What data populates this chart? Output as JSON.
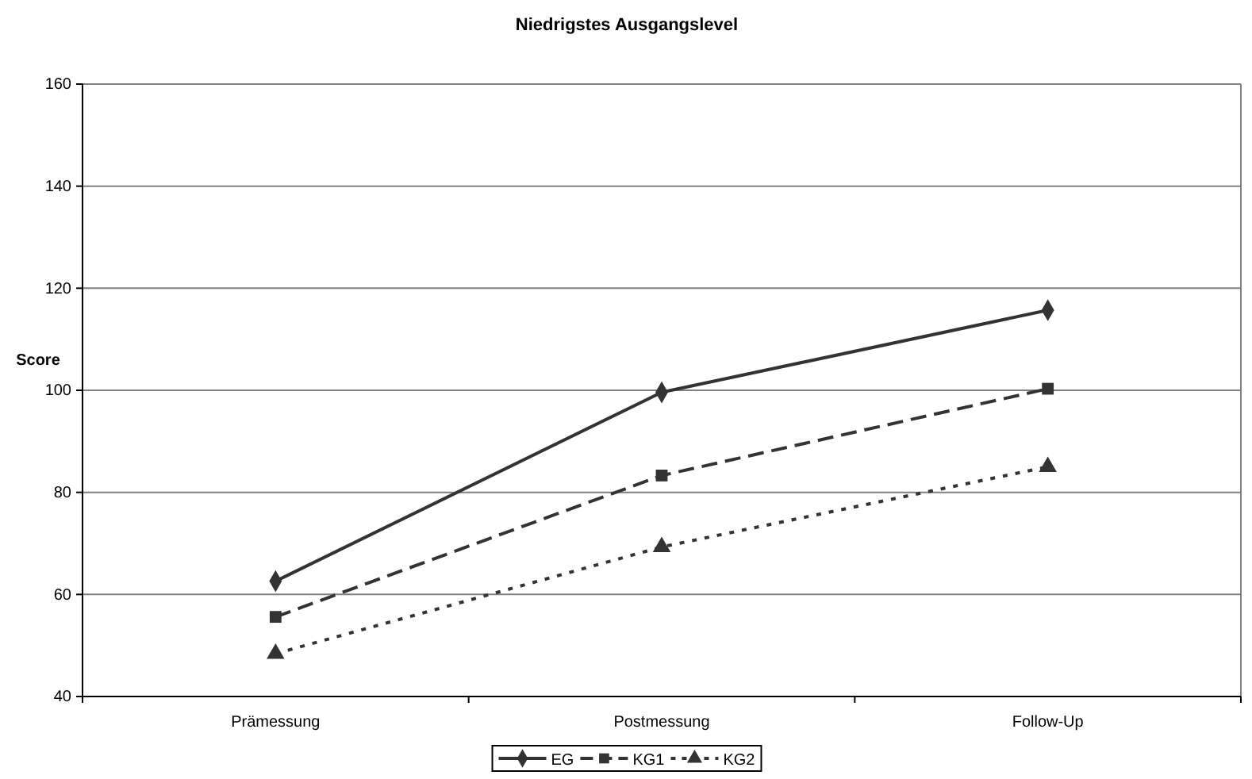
{
  "chart_data": {
    "type": "line",
    "title": "Niedrigstes Ausgangslevel",
    "ylabel": "Score",
    "categories": [
      "Prämessung",
      "Postmessung",
      "Follow-Up"
    ],
    "ylim": [
      40,
      160
    ],
    "yticks": [
      40,
      60,
      80,
      100,
      120,
      140,
      160
    ],
    "grid": "y",
    "legend": "bottom",
    "series": [
      {
        "name": "EG",
        "color": "#333333",
        "values": [
          62.6,
          99.6,
          115.7
        ],
        "marker": "diamond",
        "line_style": "solid"
      },
      {
        "name": "KG1",
        "color": "#333333",
        "values": [
          55.6,
          83.3,
          100.3
        ],
        "marker": "square",
        "line_style": "dashed"
      },
      {
        "name": "KG2",
        "color": "#333333",
        "values": [
          48.4,
          69.3,
          85.0
        ],
        "marker": "triangle",
        "line_style": "dotted"
      }
    ]
  }
}
